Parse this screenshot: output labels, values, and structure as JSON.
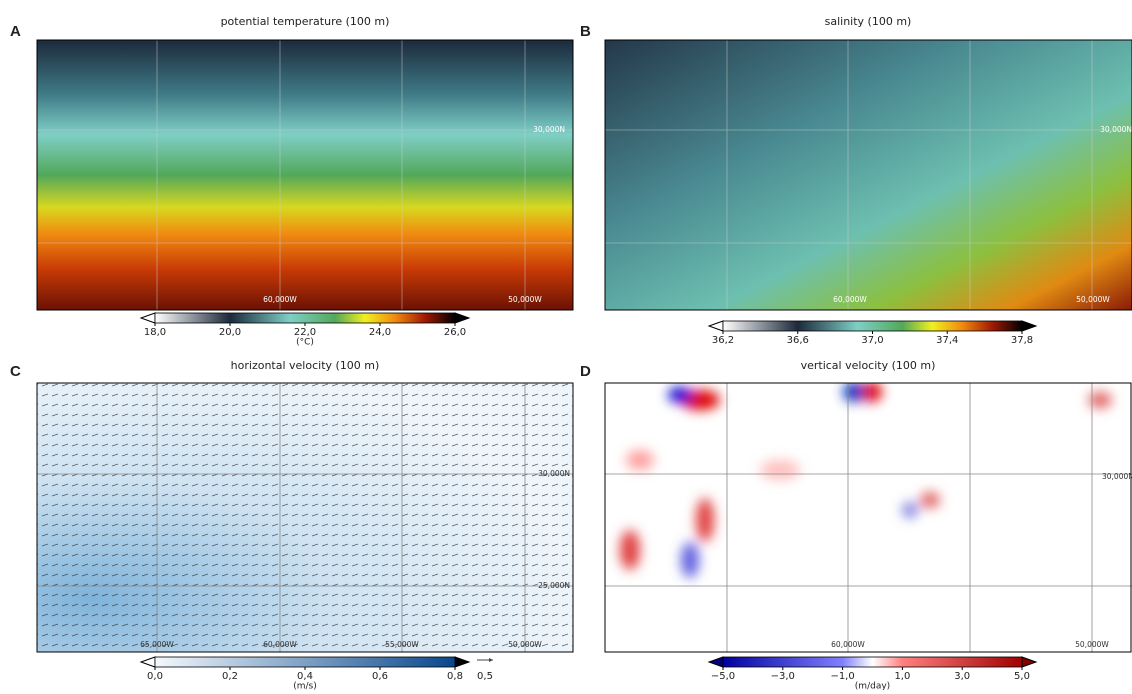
{
  "panels": [
    {
      "letter": "A",
      "title": "potential temperature (100 m)",
      "grid_labels": [
        "30,000N",
        "60,000W",
        "50,000W"
      ],
      "colorbar": {
        "lim": [
          18,
          26
        ],
        "ticks": [
          {
            "value": 18,
            "label": "18,0"
          },
          {
            "value": 20,
            "label": "20,0"
          },
          {
            "value": 22,
            "label": "22,0"
          },
          {
            "value": 24,
            "label": "24,0"
          },
          {
            "value": 26,
            "label": "26,0"
          }
        ],
        "units": "(°C)"
      }
    },
    {
      "letter": "B",
      "title": "salinity (100 m)",
      "grid_labels": [
        "30,000N",
        "60,000W",
        "50,000W"
      ],
      "colorbar": {
        "lim": [
          36.2,
          37.8
        ],
        "ticks": [
          {
            "value": 36.2,
            "label": "36,2"
          },
          {
            "value": 36.6,
            "label": "36,6"
          },
          {
            "value": 37,
            "label": "37,0"
          },
          {
            "value": 37.4,
            "label": "37,4"
          },
          {
            "value": 37.8,
            "label": "37,8"
          }
        ]
      }
    },
    {
      "letter": "C",
      "title": "horizontal velocity (100 m)",
      "grid_labels": [
        "30,000N",
        "25,000N",
        "65,000W",
        "60,000W",
        "55,000W",
        "50,000W"
      ],
      "colorbar": {
        "lim": [
          0,
          0.8
        ],
        "ticks": [
          {
            "value": 0,
            "label": "0,0"
          },
          {
            "value": 0.2,
            "label": "0,2"
          },
          {
            "value": 0.4,
            "label": "0,4"
          },
          {
            "value": 0.6,
            "label": "0,6"
          },
          {
            "value": 0.8,
            "label": "0,8"
          }
        ],
        "units": "(m/s)",
        "reference_vector": "0,5"
      }
    },
    {
      "letter": "D",
      "title": "vertical velocity (100 m)",
      "grid_labels": [
        "30,000N",
        "60,000W",
        "50,000W"
      ],
      "colorbar": {
        "lim": [
          -5,
          5
        ],
        "ticks": [
          {
            "value": -5,
            "label": "−5,0"
          },
          {
            "value": -3,
            "label": "−3,0"
          },
          {
            "value": -1,
            "label": "−1,0"
          },
          {
            "value": 1,
            "label": "1,0"
          },
          {
            "value": 3,
            "label": "3,0"
          },
          {
            "value": 5,
            "label": "5,0"
          }
        ],
        "units": "(m/day)"
      }
    }
  ]
}
